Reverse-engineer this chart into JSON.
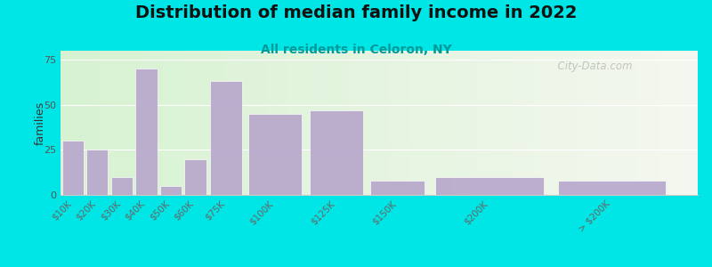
{
  "title": "Distribution of median family income in 2022",
  "subtitle": "All residents in Celoron, NY",
  "ylabel": "families",
  "categories": [
    "$10K",
    "$20K",
    "$30K",
    "$40K",
    "$50K",
    "$60K",
    "$75K",
    "$100K",
    "$125K",
    "$150K",
    "$200K",
    "> $200K"
  ],
  "values": [
    30,
    25,
    10,
    70,
    5,
    20,
    63,
    45,
    47,
    8,
    10,
    8
  ],
  "bar_left_edges": [
    0,
    10,
    20,
    30,
    40,
    50,
    60,
    75,
    100,
    125,
    150,
    200
  ],
  "bar_widths": [
    10,
    10,
    10,
    10,
    10,
    10,
    15,
    25,
    25,
    25,
    50,
    50
  ],
  "bar_color": "#b8a8cc",
  "ylim": [
    0,
    80
  ],
  "yticks": [
    0,
    25,
    50,
    75
  ],
  "xlim_max": 260,
  "background_color": "#00e5e5",
  "title_fontsize": 14,
  "subtitle_fontsize": 10,
  "watermark": "  City-Data.com"
}
